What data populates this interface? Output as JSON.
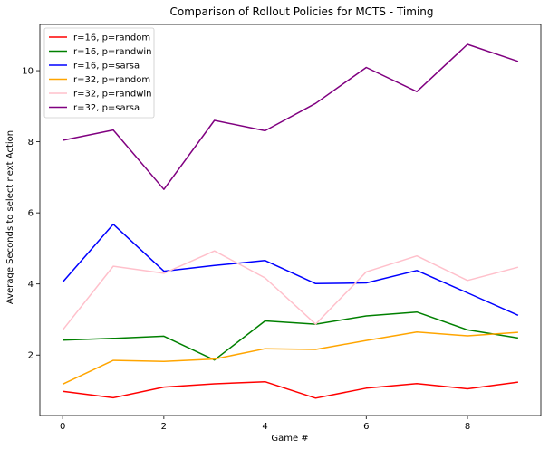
{
  "chart_data": {
    "type": "line",
    "title": "Comparison of Rollout Policies for MCTS - Timing",
    "xlabel": "Game #",
    "ylabel": "Average Seconds to select next Action",
    "x": [
      0,
      1,
      2,
      3,
      4,
      5,
      6,
      7,
      8,
      9
    ],
    "xlim": [
      -0.45,
      9.45
    ],
    "ylim": [
      0.3,
      11.3
    ],
    "xticks": [
      0,
      2,
      4,
      6,
      8
    ],
    "yticks": [
      2,
      4,
      6,
      8,
      10
    ],
    "grid": false,
    "legend_position": "top-left",
    "series": [
      {
        "name": "r=16, p=random",
        "color": "#ff0000",
        "values": [
          0.98,
          0.8,
          1.1,
          1.19,
          1.25,
          0.79,
          1.07,
          1.2,
          1.05,
          1.24
        ]
      },
      {
        "name": "r=16, p=randwin",
        "color": "#008000",
        "values": [
          2.42,
          2.47,
          2.53,
          1.86,
          2.96,
          2.87,
          3.1,
          3.21,
          2.71,
          2.48
        ]
      },
      {
        "name": "r=16, p=sarsa",
        "color": "#0000ff",
        "values": [
          4.05,
          5.68,
          4.36,
          4.52,
          4.66,
          4.01,
          4.03,
          4.38,
          3.75,
          3.12
        ]
      },
      {
        "name": "r=32, p=random",
        "color": "#ffa500",
        "values": [
          1.18,
          1.85,
          1.82,
          1.89,
          2.18,
          2.16,
          2.41,
          2.65,
          2.54,
          2.64
        ]
      },
      {
        "name": "r=32, p=randwin",
        "color": "#ffc0cb",
        "values": [
          2.7,
          4.5,
          4.3,
          4.93,
          4.17,
          2.87,
          4.34,
          4.79,
          4.1,
          4.47
        ]
      },
      {
        "name": "r=32, p=sarsa",
        "color": "#800080",
        "values": [
          8.04,
          8.33,
          6.66,
          8.6,
          8.31,
          9.08,
          10.09,
          9.41,
          10.74,
          10.26
        ]
      }
    ]
  }
}
